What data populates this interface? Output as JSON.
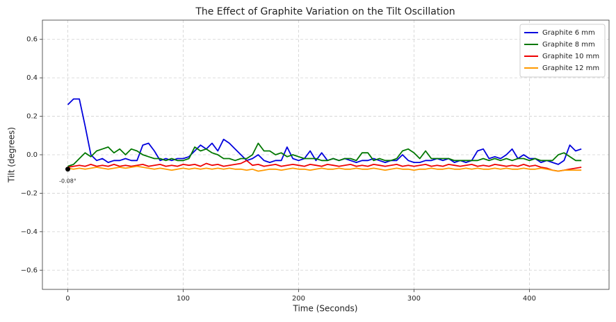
{
  "chart_data": {
    "type": "line",
    "title": "The Effect of Graphite Variation on the Tilt Oscillation",
    "x_label": "Time (Seconds)",
    "y_label": "Tilt (degrees)",
    "x": [
      0,
      5,
      10,
      15,
      20,
      25,
      30,
      35,
      40,
      45,
      50,
      55,
      60,
      65,
      70,
      75,
      80,
      85,
      90,
      95,
      100,
      105,
      110,
      115,
      120,
      125,
      130,
      135,
      140,
      145,
      150,
      155,
      160,
      165,
      170,
      175,
      180,
      185,
      190,
      195,
      200,
      205,
      210,
      215,
      220,
      225,
      230,
      235,
      240,
      245,
      250,
      255,
      260,
      265,
      270,
      275,
      280,
      285,
      290,
      295,
      300,
      305,
      310,
      315,
      320,
      325,
      330,
      335,
      340,
      345,
      350,
      355,
      360,
      365,
      370,
      375,
      380,
      385,
      390,
      395,
      400,
      405,
      410,
      415,
      420,
      425,
      430,
      435,
      440,
      445
    ],
    "series": [
      {
        "name": "Graphite 6 mm",
        "color": "#0000dd",
        "values": [
          0.26,
          0.29,
          0.29,
          0.15,
          0.0,
          -0.03,
          -0.02,
          -0.04,
          -0.03,
          -0.03,
          -0.02,
          -0.03,
          -0.03,
          0.05,
          0.06,
          0.02,
          -0.03,
          -0.02,
          -0.03,
          -0.02,
          -0.02,
          -0.01,
          0.02,
          0.05,
          0.03,
          0.06,
          0.02,
          0.08,
          0.06,
          0.03,
          0.0,
          -0.03,
          -0.02,
          0.0,
          -0.03,
          -0.04,
          -0.03,
          -0.03,
          0.04,
          -0.02,
          -0.03,
          -0.02,
          0.02,
          -0.03,
          0.01,
          -0.03,
          -0.02,
          -0.03,
          -0.02,
          -0.03,
          -0.04,
          -0.03,
          -0.03,
          -0.02,
          -0.03,
          -0.04,
          -0.03,
          -0.03,
          0.0,
          -0.03,
          -0.04,
          -0.04,
          -0.03,
          -0.03,
          -0.02,
          -0.03,
          -0.02,
          -0.04,
          -0.03,
          -0.04,
          -0.03,
          0.02,
          0.03,
          -0.02,
          -0.01,
          -0.02,
          0.0,
          0.03,
          -0.02,
          0.0,
          -0.02,
          -0.02,
          -0.04,
          -0.03,
          -0.04,
          -0.05,
          -0.03,
          0.05,
          0.02,
          0.03
        ]
      },
      {
        "name": "Graphite 8 mm",
        "color": "#007700",
        "values": [
          -0.06,
          -0.05,
          -0.02,
          0.01,
          -0.01,
          0.02,
          0.03,
          0.04,
          0.01,
          0.03,
          0.0,
          0.03,
          0.02,
          0.0,
          -0.01,
          -0.02,
          -0.02,
          -0.03,
          -0.02,
          -0.03,
          -0.03,
          -0.02,
          0.04,
          0.02,
          0.03,
          0.01,
          0.0,
          -0.02,
          -0.02,
          -0.03,
          -0.02,
          -0.02,
          0.0,
          0.06,
          0.02,
          0.02,
          0.0,
          0.01,
          -0.01,
          0.0,
          -0.01,
          -0.02,
          -0.02,
          -0.02,
          -0.03,
          -0.03,
          -0.02,
          -0.03,
          -0.02,
          -0.02,
          -0.03,
          0.01,
          0.01,
          -0.03,
          -0.02,
          -0.03,
          -0.03,
          -0.02,
          0.02,
          0.03,
          0.01,
          -0.02,
          0.02,
          -0.02,
          -0.02,
          -0.02,
          -0.02,
          -0.03,
          -0.03,
          -0.03,
          -0.03,
          -0.03,
          -0.02,
          -0.03,
          -0.02,
          -0.03,
          -0.02,
          -0.03,
          -0.02,
          -0.02,
          -0.03,
          -0.02,
          -0.03,
          -0.03,
          -0.03,
          0.0,
          0.01,
          -0.01,
          -0.03,
          -0.03
        ]
      },
      {
        "name": "Graphite 10 mm",
        "color": "#ee0000",
        "values": [
          -0.065,
          -0.06,
          -0.055,
          -0.06,
          -0.05,
          -0.06,
          -0.055,
          -0.06,
          -0.05,
          -0.06,
          -0.055,
          -0.06,
          -0.055,
          -0.05,
          -0.06,
          -0.055,
          -0.05,
          -0.06,
          -0.055,
          -0.06,
          -0.05,
          -0.055,
          -0.05,
          -0.06,
          -0.045,
          -0.055,
          -0.05,
          -0.06,
          -0.055,
          -0.05,
          -0.045,
          -0.03,
          -0.055,
          -0.05,
          -0.06,
          -0.055,
          -0.05,
          -0.06,
          -0.055,
          -0.05,
          -0.055,
          -0.06,
          -0.05,
          -0.055,
          -0.06,
          -0.05,
          -0.055,
          -0.06,
          -0.055,
          -0.05,
          -0.06,
          -0.055,
          -0.06,
          -0.05,
          -0.055,
          -0.06,
          -0.055,
          -0.05,
          -0.06,
          -0.055,
          -0.06,
          -0.055,
          -0.05,
          -0.06,
          -0.055,
          -0.06,
          -0.05,
          -0.055,
          -0.06,
          -0.055,
          -0.05,
          -0.06,
          -0.055,
          -0.06,
          -0.05,
          -0.055,
          -0.06,
          -0.055,
          -0.06,
          -0.05,
          -0.06,
          -0.055,
          -0.065,
          -0.07,
          -0.08,
          -0.085,
          -0.08,
          -0.075,
          -0.07,
          -0.065
        ]
      },
      {
        "name": "Graphite 12 mm",
        "color": "#ff9900",
        "values": [
          -0.07,
          -0.075,
          -0.07,
          -0.075,
          -0.07,
          -0.065,
          -0.07,
          -0.075,
          -0.07,
          -0.065,
          -0.07,
          -0.065,
          -0.06,
          -0.065,
          -0.07,
          -0.075,
          -0.07,
          -0.075,
          -0.08,
          -0.075,
          -0.07,
          -0.075,
          -0.07,
          -0.075,
          -0.07,
          -0.075,
          -0.07,
          -0.075,
          -0.07,
          -0.075,
          -0.075,
          -0.08,
          -0.075,
          -0.085,
          -0.08,
          -0.075,
          -0.075,
          -0.08,
          -0.075,
          -0.07,
          -0.075,
          -0.075,
          -0.08,
          -0.075,
          -0.07,
          -0.075,
          -0.075,
          -0.07,
          -0.075,
          -0.075,
          -0.07,
          -0.075,
          -0.075,
          -0.07,
          -0.075,
          -0.08,
          -0.075,
          -0.07,
          -0.075,
          -0.075,
          -0.08,
          -0.075,
          -0.075,
          -0.07,
          -0.075,
          -0.075,
          -0.07,
          -0.075,
          -0.075,
          -0.07,
          -0.075,
          -0.07,
          -0.075,
          -0.075,
          -0.07,
          -0.075,
          -0.07,
          -0.075,
          -0.075,
          -0.07,
          -0.075,
          -0.075,
          -0.07,
          -0.075,
          -0.08,
          -0.085,
          -0.08,
          -0.08,
          -0.08,
          -0.08
        ]
      }
    ],
    "annotation": {
      "text": "-0.08°",
      "x": 0,
      "y": -0.075
    },
    "xlim": [
      -22,
      469
    ],
    "ylim": [
      -0.7,
      0.7
    ],
    "xticks": [
      0,
      100,
      200,
      300,
      400
    ],
    "yticks": [
      {
        "value": -0.6,
        "label": "−0.6"
      },
      {
        "value": -0.4,
        "label": "−0.4"
      },
      {
        "value": -0.2,
        "label": "−0.2"
      },
      {
        "value": 0,
        "label": "0.0"
      },
      0.2,
      0.4,
      0.6
    ],
    "grid": true,
    "legend": "upper right"
  }
}
